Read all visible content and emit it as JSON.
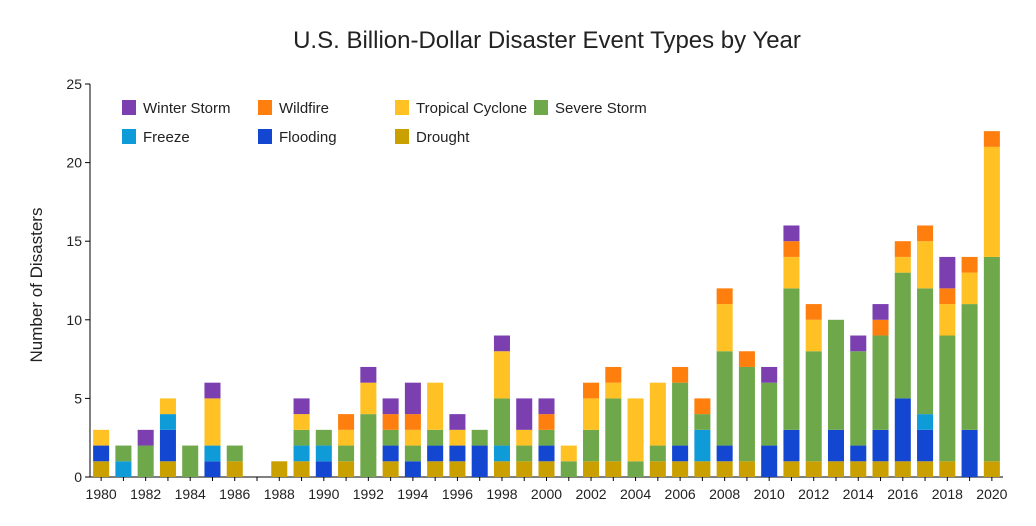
{
  "chart_data": {
    "type": "bar",
    "stacked": true,
    "title": "U.S. Billion-Dollar Disaster Event Types by Year",
    "xlabel": "",
    "ylabel": "Number of Disasters",
    "ylim": [
      0,
      25
    ],
    "yticks": [
      0,
      5,
      10,
      15,
      20,
      25
    ],
    "grid": false,
    "legend_position": "top-left",
    "x": [
      1980,
      1981,
      1982,
      1983,
      1984,
      1985,
      1986,
      1987,
      1988,
      1989,
      1990,
      1991,
      1992,
      1993,
      1994,
      1995,
      1996,
      1997,
      1998,
      1999,
      2000,
      2001,
      2002,
      2003,
      2004,
      2005,
      2006,
      2007,
      2008,
      2009,
      2010,
      2011,
      2012,
      2013,
      2014,
      2015,
      2016,
      2017,
      2018,
      2019,
      2020
    ],
    "xtick_labels": [
      "1980",
      "1982",
      "1984",
      "1986",
      "1988",
      "1990",
      "1992",
      "1994",
      "1996",
      "1998",
      "2000",
      "2002",
      "2004",
      "2006",
      "2008",
      "2010",
      "2012",
      "2014",
      "2016",
      "2018",
      "2020"
    ],
    "series": [
      {
        "name": "Drought",
        "color": "#c9a000",
        "values": [
          1,
          0,
          0,
          1,
          0,
          0,
          1,
          0,
          1,
          1,
          0,
          1,
          0,
          1,
          0,
          1,
          1,
          0,
          1,
          1,
          1,
          0,
          1,
          1,
          0,
          1,
          1,
          1,
          1,
          1,
          0,
          1,
          1,
          1,
          1,
          1,
          1,
          1,
          1,
          0,
          1
        ]
      },
      {
        "name": "Flooding",
        "color": "#1447d1",
        "values": [
          1,
          0,
          0,
          2,
          0,
          1,
          0,
          0,
          0,
          0,
          1,
          0,
          0,
          1,
          1,
          1,
          1,
          2,
          0,
          0,
          1,
          0,
          0,
          0,
          0,
          0,
          1,
          0,
          1,
          0,
          2,
          2,
          0,
          2,
          1,
          2,
          4,
          2,
          0,
          3,
          0
        ]
      },
      {
        "name": "Freeze",
        "color": "#0f9bd7",
        "values": [
          0,
          1,
          0,
          1,
          0,
          1,
          0,
          0,
          0,
          1,
          1,
          0,
          0,
          0,
          0,
          0,
          0,
          0,
          1,
          0,
          0,
          0,
          0,
          0,
          0,
          0,
          0,
          2,
          0,
          0,
          0,
          0,
          0,
          0,
          0,
          0,
          0,
          1,
          0,
          0,
          0
        ]
      },
      {
        "name": "Severe Storm",
        "color": "#6ea84a",
        "values": [
          0,
          1,
          2,
          0,
          2,
          0,
          1,
          0,
          0,
          1,
          1,
          1,
          4,
          1,
          1,
          1,
          0,
          1,
          3,
          1,
          1,
          1,
          2,
          4,
          1,
          1,
          4,
          1,
          6,
          6,
          4,
          9,
          7,
          7,
          6,
          6,
          8,
          8,
          8,
          8,
          13
        ]
      },
      {
        "name": "Tropical Cyclone",
        "color": "#ffc124",
        "values": [
          1,
          0,
          0,
          1,
          0,
          3,
          0,
          0,
          0,
          1,
          0,
          1,
          2,
          0,
          1,
          3,
          1,
          0,
          3,
          1,
          0,
          1,
          2,
          1,
          4,
          4,
          0,
          0,
          3,
          0,
          0,
          2,
          2,
          0,
          0,
          0,
          1,
          3,
          2,
          2,
          7
        ]
      },
      {
        "name": "Wildfire",
        "color": "#ff7f0e",
        "values": [
          0,
          0,
          0,
          0,
          0,
          0,
          0,
          0,
          0,
          0,
          0,
          1,
          0,
          1,
          1,
          0,
          0,
          0,
          0,
          0,
          1,
          0,
          1,
          1,
          0,
          0,
          1,
          1,
          1,
          1,
          0,
          1,
          1,
          0,
          0,
          1,
          1,
          1,
          1,
          1,
          1
        ]
      },
      {
        "name": "Winter Storm",
        "color": "#7b3fb0",
        "values": [
          0,
          0,
          1,
          0,
          0,
          1,
          0,
          0,
          0,
          1,
          0,
          0,
          1,
          1,
          2,
          0,
          1,
          0,
          1,
          2,
          1,
          0,
          0,
          0,
          0,
          0,
          0,
          0,
          0,
          0,
          1,
          1,
          0,
          0,
          1,
          1,
          0,
          0,
          2,
          0,
          0
        ]
      }
    ],
    "legend_order": [
      "Winter Storm",
      "Wildfire",
      "Tropical Cyclone",
      "Severe Storm",
      "Freeze",
      "Flooding",
      "Drought"
    ]
  }
}
